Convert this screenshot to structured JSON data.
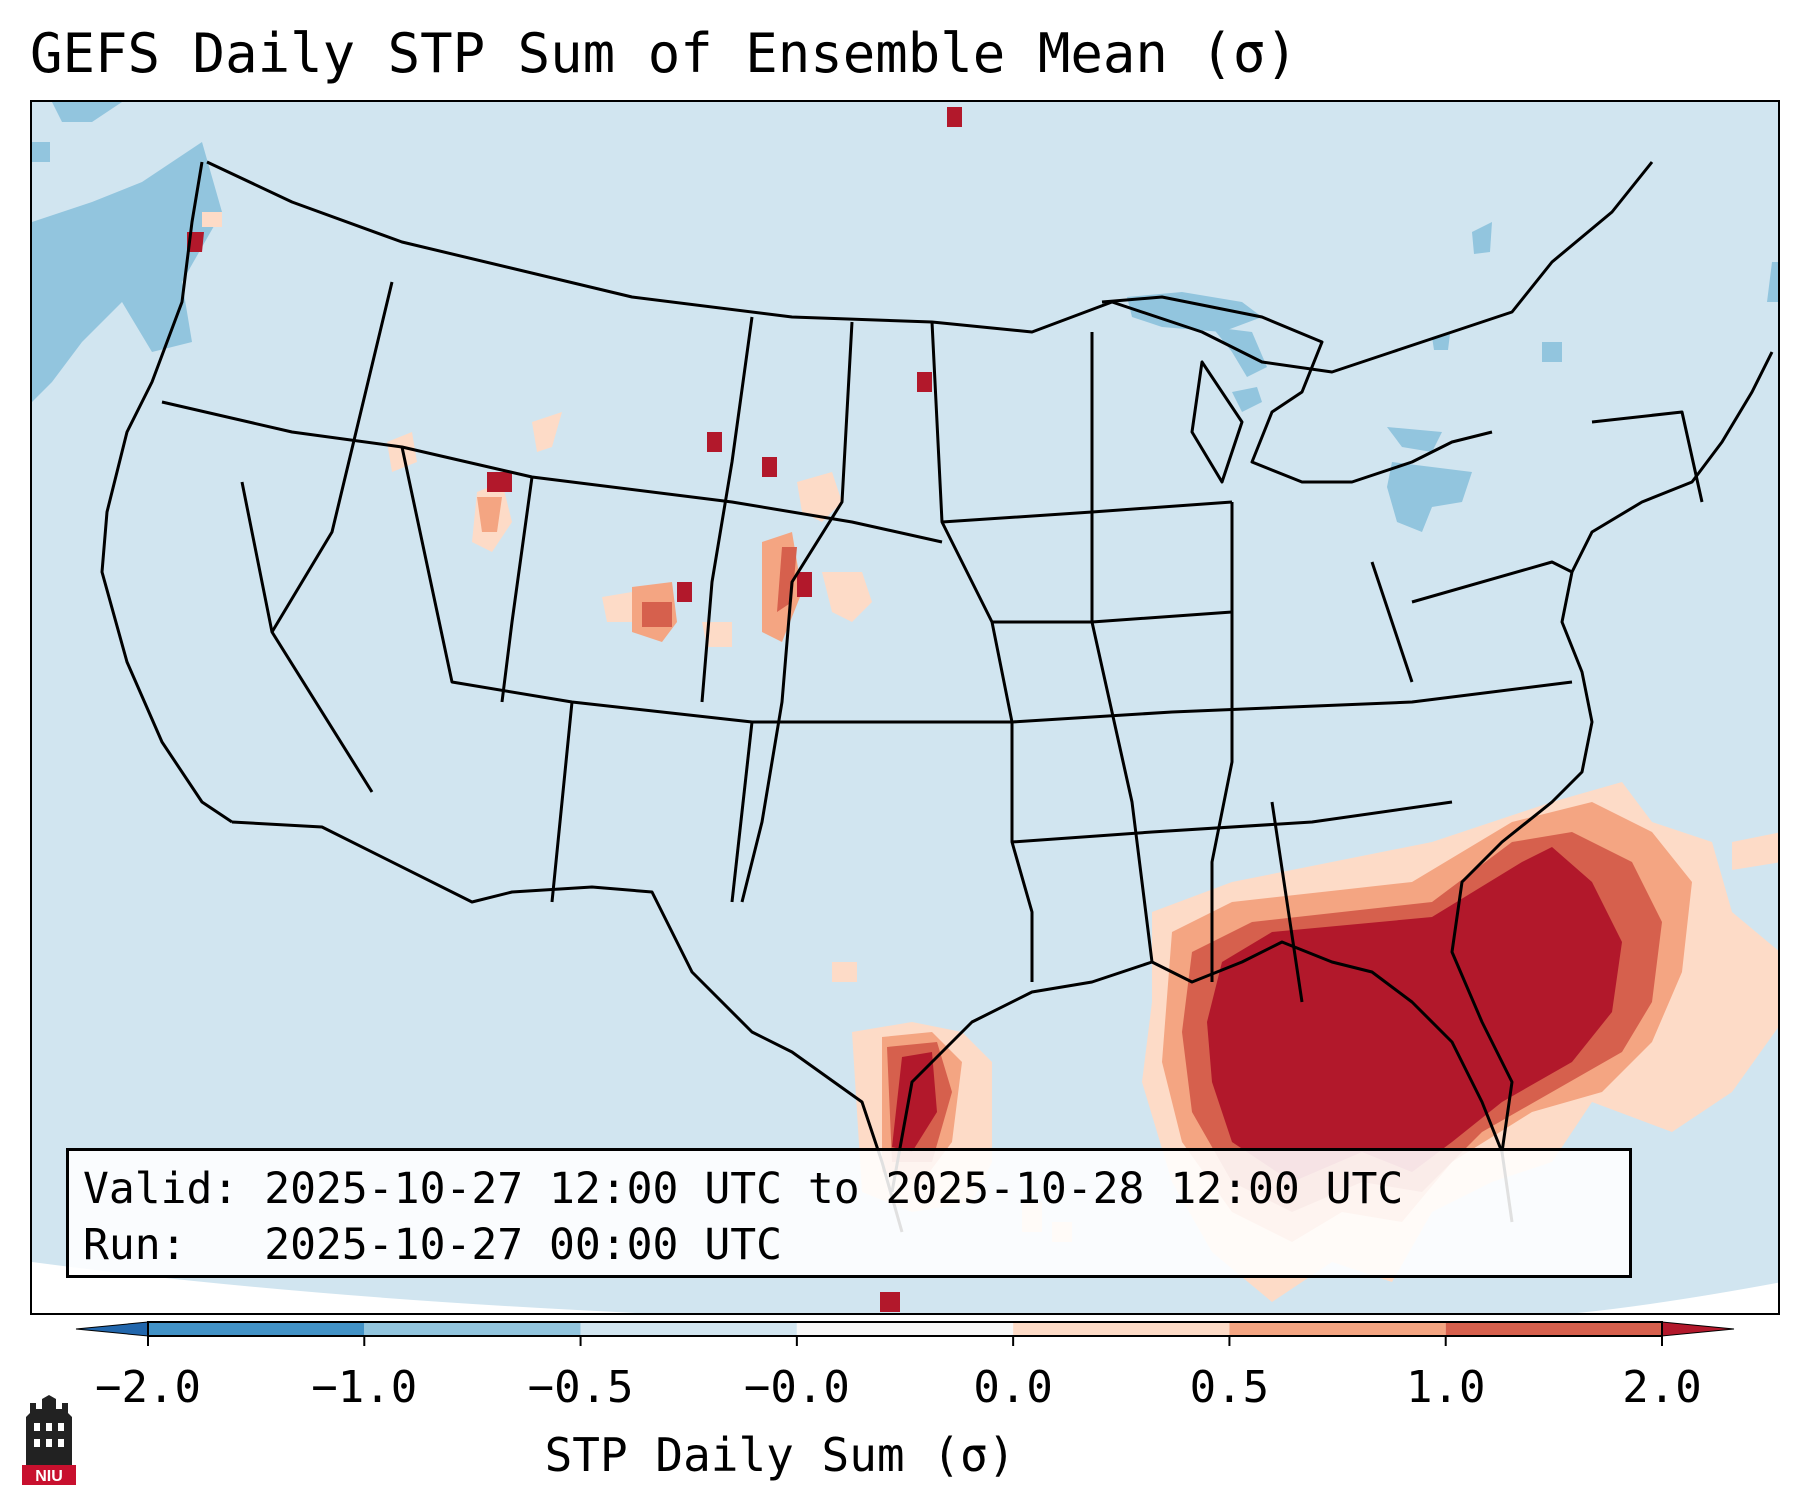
{
  "title": "GEFS Daily STP Sum of Ensemble Mean (σ)",
  "info": {
    "valid_label": "Valid:",
    "valid_value": "2025-10-27 12:00 UTC to 2025-10-28 12:00 UTC",
    "run_label": "Run:",
    "run_value": "2025-10-27 00:00 UTC"
  },
  "colorbar": {
    "title": "STP Daily Sum (σ)",
    "tick_labels": [
      "−2.0",
      "−1.0",
      "−0.5",
      "−0.0",
      "0.0",
      "0.5",
      "1.0",
      "2.0"
    ],
    "colors": [
      "#4292c6",
      "#92c5de",
      "#d1e5f0",
      "#f7f7f7",
      "#fddbc7",
      "#f4a582",
      "#d6604d",
      "#b2182b"
    ],
    "extend_low_color": "#2166ac",
    "extend_high_color": "#b2182b"
  },
  "map": {
    "background_color": "#d1e5f0",
    "region": "Continental United States",
    "highlight_regions": [
      {
        "name": "Southeast US / Florida",
        "category": "2.0+",
        "color": "#b2182b"
      },
      {
        "name": "Texas Gulf Coast",
        "category": "2.0+",
        "color": "#b2182b"
      },
      {
        "name": "Colorado / Wyoming",
        "category": "0.5-2.0",
        "color": "#d6604d"
      },
      {
        "name": "Pacific Northwest",
        "category": "-1.0 to -0.5",
        "color": "#92c5de"
      },
      {
        "name": "Great Lakes",
        "category": "-1.0 to -0.5",
        "color": "#92c5de"
      }
    ]
  },
  "logo": {
    "text": "NIU",
    "color": "#c8102e"
  }
}
